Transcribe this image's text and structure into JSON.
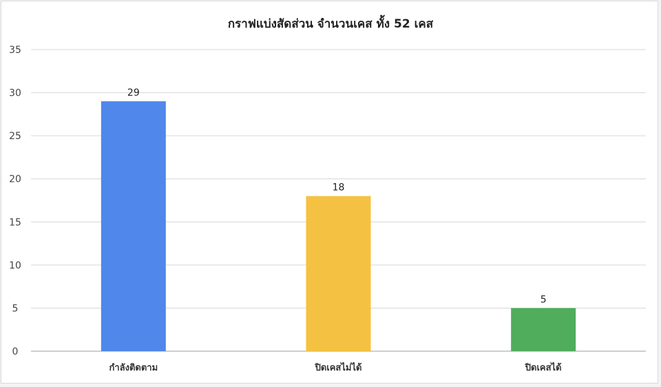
{
  "chart_data": {
    "type": "bar",
    "title": "กราฟแบ่งสัดส่วน จำนวนเคส ทั้ง 52 เคส",
    "categories": [
      "กำลังติดตาม",
      "ปิดเคสไม่ได้",
      "ปิดเคสได้"
    ],
    "values": [
      29,
      18,
      5
    ],
    "data_labels": [
      "29",
      "18",
      "5"
    ],
    "colors": [
      "#4f88ea",
      "#f5c142",
      "#4fad5b"
    ],
    "xlabel": "",
    "ylabel": "",
    "ylim": [
      0,
      35
    ],
    "yticks": [
      0,
      5,
      10,
      15,
      20,
      25,
      30,
      35
    ],
    "grid": true,
    "legend": "none"
  }
}
